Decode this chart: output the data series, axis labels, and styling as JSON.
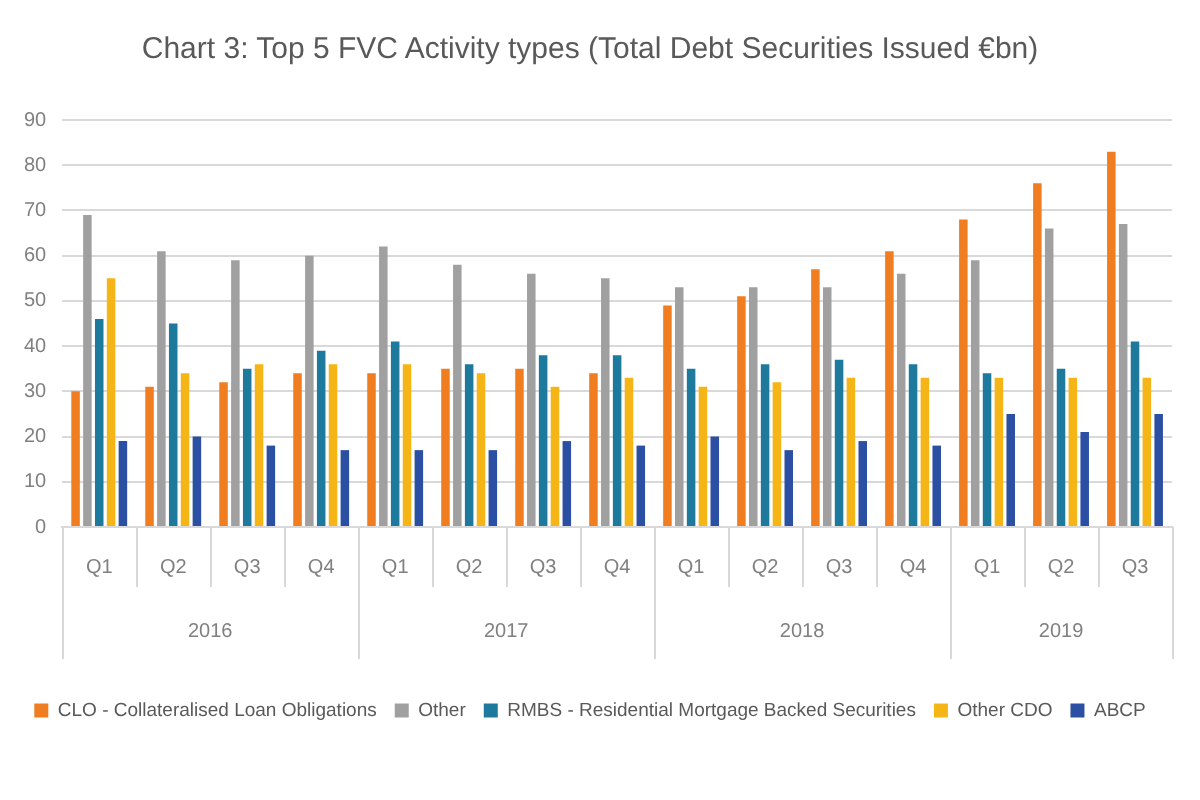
{
  "chart_data": {
    "type": "bar",
    "title": "Chart 3: Top 5 FVC Activity types (Total Debt Securities Issued €bn)",
    "categories": [
      "Q1",
      "Q2",
      "Q3",
      "Q4",
      "Q1",
      "Q2",
      "Q3",
      "Q4",
      "Q1",
      "Q2",
      "Q3",
      "Q4",
      "Q1",
      "Q2",
      "Q3"
    ],
    "series": [
      {
        "name": "CLO - Collateralised Loan Obligations",
        "color": "#f07d20",
        "values": [
          30,
          31,
          32,
          34,
          34,
          35,
          35,
          34,
          49,
          51,
          57,
          61,
          68,
          76,
          83
        ]
      },
      {
        "name": "Other",
        "color": "#a0a0a0",
        "values": [
          69,
          61,
          59,
          60,
          62,
          58,
          56,
          55,
          53,
          53,
          53,
          56,
          59,
          66,
          67
        ]
      },
      {
        "name": "RMBS - Residential Mortgage Backed Securities",
        "color": "#1d7a9c",
        "values": [
          46,
          45,
          35,
          39,
          41,
          36,
          38,
          38,
          35,
          36,
          37,
          36,
          34,
          35,
          41
        ]
      },
      {
        "name": "Other CDO",
        "color": "#f5b516",
        "values": [
          55,
          34,
          36,
          36,
          36,
          34,
          31,
          33,
          31,
          32,
          33,
          33,
          33,
          33,
          33
        ]
      },
      {
        "name": "ABCP",
        "color": "#2b4fa2",
        "values": [
          19,
          20,
          18,
          17,
          17,
          17,
          19,
          18,
          20,
          17,
          19,
          18,
          25,
          21,
          25
        ]
      }
    ],
    "annotations": [
      "2016",
      "2017",
      "2018",
      "2019"
    ],
    "ylim": [
      0,
      90
    ],
    "yticks": [
      0,
      10,
      20,
      30,
      40,
      50,
      60,
      70,
      80,
      90
    ],
    "grid": "y",
    "legend": "bottom"
  }
}
